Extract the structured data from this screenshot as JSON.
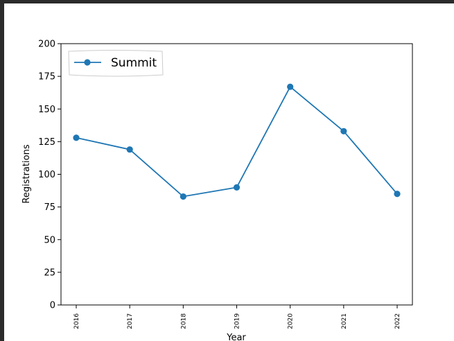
{
  "chart_data": {
    "type": "line",
    "title": "",
    "xlabel": "Year",
    "ylabel": "Registrations",
    "categories": [
      "2016",
      "2017",
      "2018",
      "2019",
      "2020",
      "2021",
      "2022"
    ],
    "series": [
      {
        "name": "Summit",
        "values": [
          128,
          119,
          83,
          90,
          167,
          133,
          85
        ],
        "color": "#1f77b4",
        "marker": "circle"
      }
    ],
    "ylim": [
      0,
      200
    ],
    "yticks": [
      0,
      25,
      50,
      75,
      100,
      125,
      150,
      175,
      200
    ],
    "grid": false,
    "legend_position": "top-left",
    "x_tick_rotation": "vertical"
  }
}
